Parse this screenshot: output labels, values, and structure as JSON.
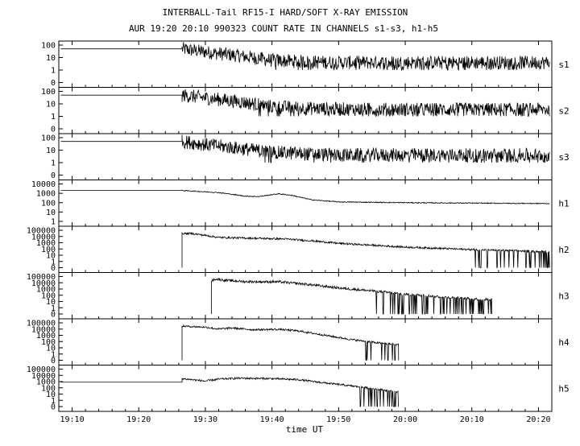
{
  "chart_data": {
    "type": "line",
    "title": "INTERBALL-Tail RF15-I HARD/SOFT X-RAY EMISSION",
    "subtitle": "AUR 19:20 20:10 990323  COUNT RATE IN CHANNELS s1-s3, h1-h5",
    "xlabel": "time UT",
    "x_ticks": [
      "19:10",
      "19:20",
      "19:30",
      "19:40",
      "19:50",
      "20:00",
      "20:10",
      "20:20"
    ],
    "x_range_minutes": [
      1148,
      1222
    ],
    "y_scale": "log",
    "grid": false,
    "panels": [
      {
        "name": "s1",
        "y_ticks": [
          "100",
          "10",
          "1",
          "0"
        ],
        "y_top_decades": 2,
        "plateau_end_min": 1166.5,
        "plateau_value": 50,
        "points": [
          [
            1166.5,
            50
          ],
          [
            1170,
            28
          ],
          [
            1175,
            14
          ],
          [
            1180,
            6
          ],
          [
            1185,
            4.5
          ],
          [
            1190,
            4
          ],
          [
            1200,
            4
          ],
          [
            1210,
            4
          ],
          [
            1222,
            4
          ]
        ],
        "noise": 0.55
      },
      {
        "name": "s2",
        "y_ticks": [
          "100",
          "10",
          "1",
          "0"
        ],
        "y_top_decades": 2,
        "plateau_end_min": 1166.5,
        "plateau_value": 50,
        "points": [
          [
            1166.5,
            50
          ],
          [
            1170,
            30
          ],
          [
            1175,
            15
          ],
          [
            1180,
            6
          ],
          [
            1185,
            4.5
          ],
          [
            1190,
            3.8
          ],
          [
            1200,
            3.5
          ],
          [
            1210,
            3.5
          ],
          [
            1222,
            3.5
          ]
        ],
        "noise": 0.55
      },
      {
        "name": "s3",
        "y_ticks": [
          "100",
          "10",
          "1",
          "0"
        ],
        "y_top_decades": 2,
        "plateau_end_min": 1166.5,
        "plateau_value": 50,
        "points": [
          [
            1166.5,
            50
          ],
          [
            1170,
            28
          ],
          [
            1175,
            14
          ],
          [
            1180,
            7
          ],
          [
            1185,
            5
          ],
          [
            1190,
            4
          ],
          [
            1200,
            4
          ],
          [
            1210,
            4
          ],
          [
            1222,
            4
          ]
        ],
        "noise": 0.55
      },
      {
        "name": "h1",
        "y_ticks": [
          "10000",
          "1000",
          "100",
          "10",
          "1"
        ],
        "y_top_decades": 4,
        "plateau_end_min": 1166.5,
        "plateau_value": 2000,
        "points": [
          [
            1166.5,
            2000
          ],
          [
            1172,
            1200
          ],
          [
            1176,
            500
          ],
          [
            1178,
            450
          ],
          [
            1181,
            900
          ],
          [
            1183,
            600
          ],
          [
            1186,
            200
          ],
          [
            1190,
            120
          ],
          [
            1200,
            100
          ],
          [
            1210,
            90
          ],
          [
            1222,
            80
          ]
        ],
        "noise": 0.05
      },
      {
        "name": "h2",
        "y_ticks": [
          "100000",
          "10000",
          "1000",
          "100",
          "10",
          "1",
          "0"
        ],
        "y_top_decades": 5,
        "onset_min": 1166.5,
        "onset_value": 30000,
        "points": [
          [
            1166.5,
            30000
          ],
          [
            1168,
            30000
          ],
          [
            1170,
            15000
          ],
          [
            1172,
            7000
          ],
          [
            1178,
            5000
          ],
          [
            1182,
            4000
          ],
          [
            1186,
            2000
          ],
          [
            1190,
            800
          ],
          [
            1200,
            200
          ],
          [
            1210,
            80
          ],
          [
            1220,
            40
          ],
          [
            1222,
            40
          ]
        ],
        "noise": 0.15,
        "dropouts_from_min": 1210
      },
      {
        "name": "h3",
        "y_ticks": [
          "100000",
          "10000",
          "1000",
          "100",
          "10",
          "1",
          "0"
        ],
        "y_top_decades": 5,
        "onset_min": 1170.9,
        "onset_value": 20000,
        "points": [
          [
            1170.9,
            20000
          ],
          [
            1171.5,
            40000
          ],
          [
            1173,
            25000
          ],
          [
            1176,
            15000
          ],
          [
            1181,
            14000
          ],
          [
            1185,
            6000
          ],
          [
            1190,
            1500
          ],
          [
            1195,
            500
          ],
          [
            1200,
            150
          ],
          [
            1205,
            60
          ],
          [
            1209,
            30
          ],
          [
            1213,
            20
          ]
        ],
        "end_min": 1213,
        "noise": 0.2,
        "dropouts_from_min": 1195
      },
      {
        "name": "h4",
        "y_ticks": [
          "100000",
          "10000",
          "1000",
          "100",
          "10",
          "1",
          "0"
        ],
        "y_top_decades": 5,
        "onset_min": 1166.5,
        "onset_value": 30000,
        "points": [
          [
            1166.5,
            30000
          ],
          [
            1170,
            20000
          ],
          [
            1172,
            10000
          ],
          [
            1174,
            15000
          ],
          [
            1177,
            8000
          ],
          [
            1181,
            9000
          ],
          [
            1184,
            5000
          ],
          [
            1188,
            1000
          ],
          [
            1192,
            200
          ],
          [
            1196,
            60
          ],
          [
            1199,
            30
          ]
        ],
        "end_min": 1199,
        "noise": 0.15,
        "dropouts_from_min": 1194
      },
      {
        "name": "h5",
        "y_ticks": [
          "100000",
          "10000",
          "1000",
          "100",
          "10",
          "1",
          "0"
        ],
        "y_top_decades": 5,
        "plateau_end_min": 1166.5,
        "plateau_value": 800,
        "points": [
          [
            1166.5,
            3000
          ],
          [
            1170,
            1200
          ],
          [
            1172,
            2500
          ],
          [
            1175,
            3500
          ],
          [
            1180,
            3000
          ],
          [
            1184,
            2000
          ],
          [
            1188,
            600
          ],
          [
            1192,
            200
          ],
          [
            1196,
            60
          ],
          [
            1199,
            20
          ]
        ],
        "end_min": 1199,
        "noise": 0.15,
        "dropouts_from_min": 1193
      }
    ]
  }
}
